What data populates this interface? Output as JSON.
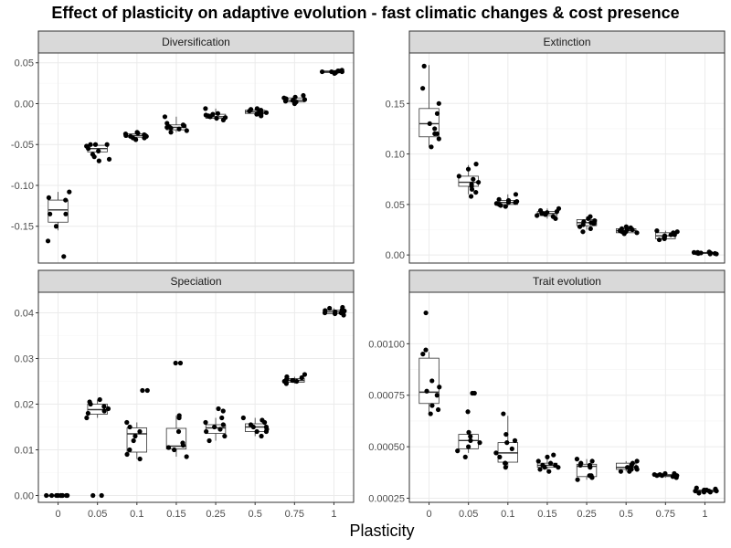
{
  "chart_data": {
    "type": "boxplot",
    "title": "Effect of plasticity on adaptive evolution - fast climatic changes & cost presence",
    "xlabel": "Plasticity",
    "categories": [
      "0",
      "0.05",
      "0.1",
      "0.15",
      "0.25",
      "0.5",
      "0.75",
      "1"
    ],
    "facets": [
      {
        "label": "Diversification",
        "ylim": [
          -0.195,
          0.062
        ],
        "yticks": [
          -0.15,
          -0.1,
          -0.05,
          0.0,
          0.05
        ],
        "ytick_labels": [
          "-0.15",
          "-0.10",
          "-0.05",
          "0.00",
          "0.05"
        ],
        "boxes": [
          {
            "min": -0.155,
            "q1": -0.145,
            "median": -0.13,
            "q3": -0.118,
            "max": -0.108
          },
          {
            "min": -0.06,
            "q1": -0.059,
            "median": -0.055,
            "q3": -0.051,
            "max": -0.049
          },
          {
            "min": -0.043,
            "q1": -0.041,
            "median": -0.039,
            "q3": -0.037,
            "max": -0.035
          },
          {
            "min": -0.035,
            "q1": -0.032,
            "median": -0.029,
            "q3": -0.026,
            "max": -0.016
          },
          {
            "min": -0.02,
            "q1": -0.018,
            "median": -0.016,
            "q3": -0.013,
            "max": -0.006
          },
          {
            "min": -0.014,
            "q1": -0.012,
            "median": -0.01,
            "q3": -0.008,
            "max": -0.006
          },
          {
            "min": 0.001,
            "q1": 0.002,
            "median": 0.004,
            "q3": 0.007,
            "max": 0.01
          },
          {
            "min": 0.037,
            "q1": 0.038,
            "median": 0.039,
            "q3": 0.04,
            "max": 0.041
          }
        ],
        "points": [
          [
            -0.187,
            -0.168,
            -0.15,
            -0.135,
            -0.135,
            -0.118,
            -0.115,
            -0.108
          ],
          [
            -0.07,
            -0.065,
            -0.062,
            -0.058,
            -0.055,
            -0.052,
            -0.05,
            -0.05,
            -0.05,
            -0.068
          ],
          [
            -0.044,
            -0.042,
            -0.04,
            -0.039,
            -0.038,
            -0.037,
            -0.036,
            -0.04,
            -0.035,
            -0.042
          ],
          [
            -0.035,
            -0.033,
            -0.031,
            -0.029,
            -0.028,
            -0.027,
            -0.026,
            -0.016,
            -0.024,
            -0.03
          ],
          [
            -0.02,
            -0.018,
            -0.017,
            -0.016,
            -0.015,
            -0.014,
            -0.013,
            -0.006,
            -0.012,
            -0.016
          ],
          [
            -0.015,
            -0.013,
            -0.012,
            -0.011,
            -0.01,
            -0.009,
            -0.008,
            -0.006,
            -0.007,
            -0.012
          ],
          [
            0.0,
            0.002,
            0.003,
            0.004,
            0.005,
            0.006,
            0.007,
            0.01,
            0.008,
            0.004
          ],
          [
            0.037,
            0.038,
            0.039,
            0.039,
            0.04,
            0.04,
            0.041,
            0.038,
            0.039,
            0.04
          ]
        ]
      },
      {
        "label": "Extinction",
        "ylim": [
          -0.008,
          0.2
        ],
        "yticks": [
          0.0,
          0.05,
          0.1,
          0.15
        ],
        "ytick_labels": [
          "0.00",
          "0.05",
          "0.10",
          "0.15"
        ],
        "boxes": [
          {
            "min": 0.107,
            "q1": 0.117,
            "median": 0.13,
            "q3": 0.145,
            "max": 0.188
          },
          {
            "min": 0.06,
            "q1": 0.068,
            "median": 0.072,
            "q3": 0.078,
            "max": 0.089
          },
          {
            "min": 0.048,
            "q1": 0.05,
            "median": 0.052,
            "q3": 0.054,
            "max": 0.06
          },
          {
            "min": 0.036,
            "q1": 0.039,
            "median": 0.041,
            "q3": 0.043,
            "max": 0.046
          },
          {
            "min": 0.025,
            "q1": 0.029,
            "median": 0.032,
            "q3": 0.035,
            "max": 0.038
          },
          {
            "min": 0.021,
            "q1": 0.022,
            "median": 0.024,
            "q3": 0.026,
            "max": 0.028
          },
          {
            "min": 0.015,
            "q1": 0.016,
            "median": 0.019,
            "q3": 0.022,
            "max": 0.024
          },
          {
            "min": 0.001,
            "q1": 0.0015,
            "median": 0.002,
            "q3": 0.0025,
            "max": 0.003
          }
        ],
        "points": [
          [
            0.107,
            0.115,
            0.12,
            0.125,
            0.13,
            0.14,
            0.15,
            0.165,
            0.187,
            0.12
          ],
          [
            0.058,
            0.062,
            0.068,
            0.07,
            0.072,
            0.075,
            0.078,
            0.085,
            0.09,
            0.065
          ],
          [
            0.048,
            0.049,
            0.05,
            0.051,
            0.052,
            0.053,
            0.054,
            0.055,
            0.06,
            0.052
          ],
          [
            0.036,
            0.038,
            0.039,
            0.04,
            0.041,
            0.042,
            0.043,
            0.044,
            0.046,
            0.041
          ],
          [
            0.023,
            0.026,
            0.028,
            0.03,
            0.032,
            0.034,
            0.036,
            0.038,
            0.033,
            0.031
          ],
          [
            0.021,
            0.022,
            0.023,
            0.024,
            0.025,
            0.026,
            0.027,
            0.028,
            0.023,
            0.025
          ],
          [
            0.015,
            0.016,
            0.017,
            0.018,
            0.019,
            0.02,
            0.022,
            0.023,
            0.024,
            0.02
          ],
          [
            0.001,
            0.0015,
            0.002,
            0.002,
            0.0025,
            0.003,
            0.001,
            0.002,
            0.0015,
            0.0025
          ]
        ]
      },
      {
        "label": "Speciation",
        "ylim": [
          -0.0015,
          0.0445
        ],
        "yticks": [
          0.0,
          0.01,
          0.02,
          0.03,
          0.04
        ],
        "ytick_labels": [
          "0.00",
          "0.01",
          "0.02",
          "0.03",
          "0.04"
        ],
        "boxes": [
          {
            "min": 0.0,
            "q1": 0.0,
            "median": 0.0,
            "q3": 0.0,
            "max": 0.0
          },
          {
            "min": 0.017,
            "q1": 0.0178,
            "median": 0.0188,
            "q3": 0.02,
            "max": 0.021
          },
          {
            "min": 0.008,
            "q1": 0.0095,
            "median": 0.0135,
            "q3": 0.0148,
            "max": 0.016
          },
          {
            "min": 0.0085,
            "q1": 0.0102,
            "median": 0.0108,
            "q3": 0.0147,
            "max": 0.0175
          },
          {
            "min": 0.012,
            "q1": 0.0136,
            "median": 0.0148,
            "q3": 0.0155,
            "max": 0.017
          },
          {
            "min": 0.013,
            "q1": 0.014,
            "median": 0.015,
            "q3": 0.0157,
            "max": 0.017
          },
          {
            "min": 0.0245,
            "q1": 0.0248,
            "median": 0.0252,
            "q3": 0.0256,
            "max": 0.026
          },
          {
            "min": 0.0395,
            "q1": 0.0398,
            "median": 0.0402,
            "q3": 0.0406,
            "max": 0.041
          }
        ],
        "points": [
          [
            0.0,
            0.0,
            0.0,
            0.0,
            0.0,
            0.0,
            0.0,
            0.0,
            0.0,
            0.0
          ],
          [
            0.017,
            0.018,
            0.0185,
            0.019,
            0.0195,
            0.02,
            0.0205,
            0.021,
            0.0,
            0.0
          ],
          [
            0.008,
            0.009,
            0.01,
            0.013,
            0.014,
            0.015,
            0.016,
            0.023,
            0.023,
            0.012
          ],
          [
            0.0085,
            0.01,
            0.0105,
            0.011,
            0.0115,
            0.017,
            0.0175,
            0.029,
            0.029,
            0.014
          ],
          [
            0.012,
            0.013,
            0.014,
            0.015,
            0.0155,
            0.016,
            0.017,
            0.0185,
            0.019,
            0.0145
          ],
          [
            0.013,
            0.014,
            0.0145,
            0.015,
            0.0155,
            0.016,
            0.0165,
            0.017,
            0.015,
            0.014
          ],
          [
            0.0245,
            0.0248,
            0.025,
            0.0252,
            0.0255,
            0.0258,
            0.026,
            0.0265,
            0.025,
            0.0252
          ],
          [
            0.0395,
            0.0398,
            0.04,
            0.0402,
            0.0404,
            0.0406,
            0.041,
            0.0412,
            0.04,
            0.0405
          ]
        ]
      },
      {
        "label": "Trait evolution",
        "ylim": [
          0.00023,
          0.00125
        ],
        "yticks": [
          0.00025,
          0.0005,
          0.00075,
          0.001
        ],
        "ytick_labels": [
          "0.00025",
          "0.00050",
          "0.00075",
          "0.00100"
        ],
        "boxes": [
          {
            "min": 0.00066,
            "q1": 0.00071,
            "median": 0.000765,
            "q3": 0.00093,
            "max": 0.00096
          },
          {
            "min": 0.00047,
            "q1": 0.00049,
            "median": 0.00053,
            "q3": 0.00056,
            "max": 0.00058
          },
          {
            "min": 0.0004,
            "q1": 0.000425,
            "median": 0.00047,
            "q3": 0.00052,
            "max": 0.00065
          },
          {
            "min": 0.00038,
            "q1": 0.0004,
            "median": 0.00041,
            "q3": 0.00042,
            "max": 0.00046
          },
          {
            "min": 0.00034,
            "q1": 0.000355,
            "median": 0.000405,
            "q3": 0.000415,
            "max": 0.00044
          },
          {
            "min": 0.00038,
            "q1": 0.00039,
            "median": 0.0004,
            "q3": 0.00042,
            "max": 0.00043
          },
          {
            "min": 0.00035,
            "q1": 0.000355,
            "median": 0.00036,
            "q3": 0.000365,
            "max": 0.00037
          },
          {
            "min": 0.000275,
            "q1": 0.00028,
            "median": 0.000285,
            "q3": 0.00029,
            "max": 0.0003
          }
        ],
        "points": [
          [
            0.00066,
            0.0007,
            0.00075,
            0.00077,
            0.00079,
            0.00082,
            0.00095,
            0.00097,
            0.00115,
            0.00068
          ],
          [
            0.00045,
            0.00048,
            0.0005,
            0.00052,
            0.00053,
            0.00055,
            0.00057,
            0.00067,
            0.00076,
            0.00076
          ],
          [
            0.0004,
            0.00042,
            0.00045,
            0.00047,
            0.00049,
            0.00052,
            0.00056,
            0.00066,
            0.00042,
            0.00053
          ],
          [
            0.00038,
            0.00039,
            0.0004,
            0.00041,
            0.00042,
            0.00043,
            0.00045,
            0.00046,
            0.0004,
            0.00041
          ],
          [
            0.00034,
            0.00035,
            0.00036,
            0.0004,
            0.00041,
            0.00042,
            0.00043,
            0.00044,
            0.00036,
            0.00041
          ],
          [
            0.00038,
            0.00039,
            0.0004,
            0.00041,
            0.00042,
            0.00043,
            0.00038,
            0.0004,
            0.00041,
            0.00039
          ],
          [
            0.00035,
            0.000355,
            0.00036,
            0.000365,
            0.00037,
            0.00036,
            0.000355,
            0.000365,
            0.00036,
            0.00037
          ],
          [
            0.000275,
            0.00028,
            0.000285,
            0.00029,
            0.000295,
            0.0003,
            0.000285,
            0.00028,
            0.00029,
            0.000285
          ]
        ]
      }
    ],
    "grid": true,
    "theme": "bw",
    "colors": {
      "panel_border": "#333333",
      "strip_fill": "#d9d9d9",
      "grid_major": "#ebebeb",
      "grid_minor": "#f5f5f5",
      "point": "#000000",
      "tick_label": "#4d4d4d"
    }
  }
}
